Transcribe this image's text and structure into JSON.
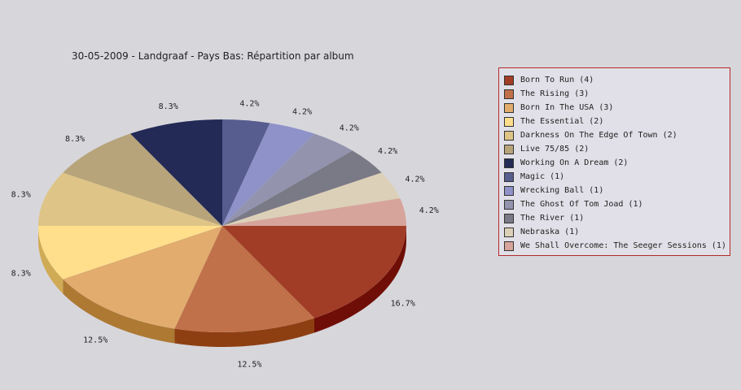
{
  "chart_data": {
    "type": "pie",
    "title": "30-05-2009 - Landgraaf - Pays Bas:  Répartition par album",
    "slices": [
      {
        "label": "Born To Run (4)",
        "value": 4,
        "pct_label": "16.7%",
        "color": "#a13d27",
        "side": "#6f0e06"
      },
      {
        "label": "The Rising (3)",
        "value": 3,
        "pct_label": "12.5%",
        "color": "#c0714a",
        "side": "#8e3f12"
      },
      {
        "label": "Born In The USA (3)",
        "value": 3,
        "pct_label": "12.5%",
        "color": "#e1ac6e",
        "side": "#ad7933"
      },
      {
        "label": "The Essential (2)",
        "value": 2,
        "pct_label": "8.3%",
        "color": "#ffdf8c",
        "side": "#d0ab56"
      },
      {
        "label": "Darkness On The Edge Of Town (2)",
        "value": 2,
        "pct_label": "8.3%",
        "color": "#dec486",
        "side": "#b59448"
      },
      {
        "label": "Live 75/85 (2)",
        "value": 2,
        "pct_label": "8.3%",
        "color": "#b7a47b",
        "side": "#8a7647"
      },
      {
        "label": "Working On A Dream (2)",
        "value": 2,
        "pct_label": "8.3%",
        "color": "#232a55",
        "side": "#10142f"
      },
      {
        "label": "Magic (1)",
        "value": 1,
        "pct_label": "4.2%",
        "color": "#575e8f",
        "side": "#353b62"
      },
      {
        "label": "Wrecking Ball (1)",
        "value": 1,
        "pct_label": "4.2%",
        "color": "#8f92c9",
        "side": "#62659a"
      },
      {
        "label": "The Ghost Of Tom Joad (1)",
        "value": 1,
        "pct_label": "4.2%",
        "color": "#9393ae",
        "side": "#666682"
      },
      {
        "label": "The River (1)",
        "value": 1,
        "pct_label": "4.2%",
        "color": "#7a7986",
        "side": "#51505c"
      },
      {
        "label": "Nebraska (1)",
        "value": 1,
        "pct_label": "4.2%",
        "color": "#dcd0b8",
        "side": "#b0a48a"
      },
      {
        "label": "We Shall Overcome: The Seeger Sessions (1)",
        "value": 1,
        "pct_label": "4.2%",
        "color": "#d6a49b",
        "side": "#aa776e"
      }
    ],
    "legend_position": "right"
  }
}
